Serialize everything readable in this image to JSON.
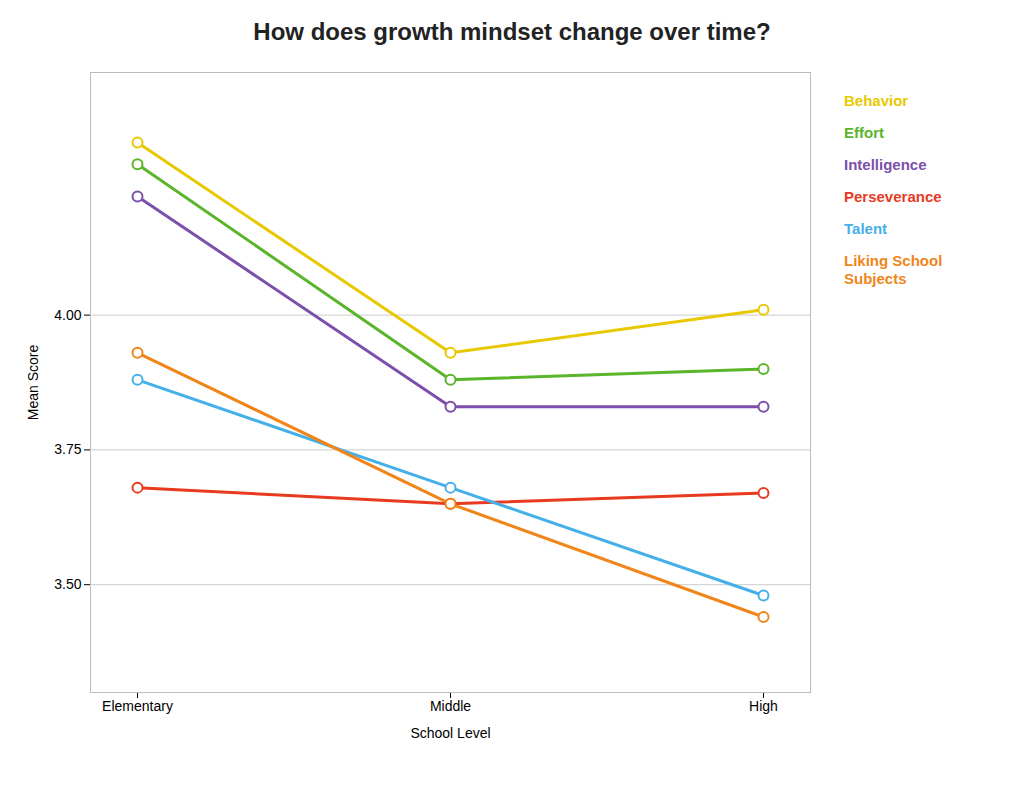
{
  "chart_data": {
    "type": "line",
    "title": "How does growth mindset change over time?",
    "xlabel": "School Level",
    "ylabel": "Mean Score",
    "categories": [
      "Elementary",
      "Middle",
      "High"
    ],
    "series": [
      {
        "name": "Behavior",
        "color": "#e8c800",
        "values": [
          4.32,
          3.93,
          4.01
        ],
        "marker": "circle"
      },
      {
        "name": "Effort",
        "color": "#5ab52a",
        "values": [
          4.28,
          3.88,
          3.9
        ],
        "marker": "circle"
      },
      {
        "name": "Intelligence",
        "color": "#7b4faa",
        "values": [
          4.22,
          3.83,
          3.83
        ],
        "marker": "circle"
      },
      {
        "name": "Perseverance",
        "color": "#e83a1f",
        "values": [
          3.68,
          3.65,
          3.67
        ],
        "marker": "circle"
      },
      {
        "name": "Talent",
        "color": "#45b0e8",
        "values": [
          3.88,
          3.68,
          3.48
        ],
        "marker": "circle"
      },
      {
        "name": "Liking School\nSubjects",
        "color": "#f0851a",
        "values": [
          3.93,
          3.65,
          3.44
        ],
        "marker": "circle"
      }
    ],
    "ylim": [
      3.3,
      4.45
    ],
    "yticks": [
      {
        "value": 3.5,
        "label": "3.50"
      },
      3.75,
      {
        "value": 4,
        "label": "4.00"
      }
    ],
    "grid": true,
    "legend": "right"
  }
}
